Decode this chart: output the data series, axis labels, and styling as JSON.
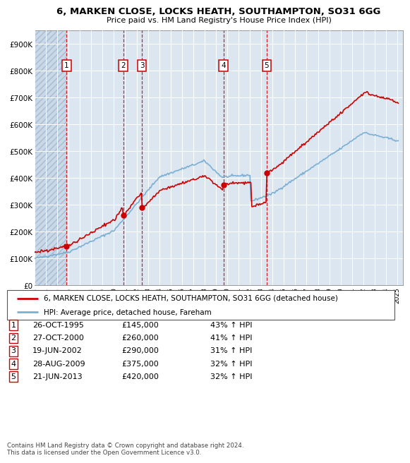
{
  "title": "6, MARKEN CLOSE, LOCKS HEATH, SOUTHAMPTON, SO31 6GG",
  "subtitle": "Price paid vs. HM Land Registry's House Price Index (HPI)",
  "legend_label_red": "6, MARKEN CLOSE, LOCKS HEATH, SOUTHAMPTON, SO31 6GG (detached house)",
  "legend_label_blue": "HPI: Average price, detached house, Fareham",
  "footer_line1": "Contains HM Land Registry data © Crown copyright and database right 2024.",
  "footer_line2": "This data is licensed under the Open Government Licence v3.0.",
  "sales": [
    {
      "num": 1,
      "date": "26-OCT-1995",
      "price": 145000,
      "pct": "43% ↑ HPI",
      "x": 1995.82
    },
    {
      "num": 2,
      "date": "27-OCT-2000",
      "price": 260000,
      "pct": "41% ↑ HPI",
      "x": 2000.82
    },
    {
      "num": 3,
      "date": "19-JUN-2002",
      "price": 290000,
      "pct": "31% ↑ HPI",
      "x": 2002.47
    },
    {
      "num": 4,
      "date": "28-AUG-2009",
      "price": 375000,
      "pct": "32% ↑ HPI",
      "x": 2009.66
    },
    {
      "num": 5,
      "date": "21-JUN-2013",
      "price": 420000,
      "pct": "32% ↑ HPI",
      "x": 2013.47
    }
  ],
  "ylim": [
    0,
    950000
  ],
  "xlim": [
    1993.0,
    2025.5
  ],
  "yticks": [
    0,
    100000,
    200000,
    300000,
    400000,
    500000,
    600000,
    700000,
    800000,
    900000
  ],
  "ytick_labels": [
    "£0",
    "£100K",
    "£200K",
    "£300K",
    "£400K",
    "£500K",
    "£600K",
    "£700K",
    "£800K",
    "£900K"
  ],
  "xticks": [
    1993,
    1994,
    1995,
    1996,
    1997,
    1998,
    1999,
    2000,
    2001,
    2002,
    2003,
    2004,
    2005,
    2006,
    2007,
    2008,
    2009,
    2010,
    2011,
    2012,
    2013,
    2014,
    2015,
    2016,
    2017,
    2018,
    2019,
    2020,
    2021,
    2022,
    2023,
    2024,
    2025
  ],
  "bg_color": "#dce6f1",
  "hatch_color": "#c8d8e8",
  "grid_color": "#ffffff",
  "red_color": "#cc0000",
  "blue_color": "#7bafd4"
}
